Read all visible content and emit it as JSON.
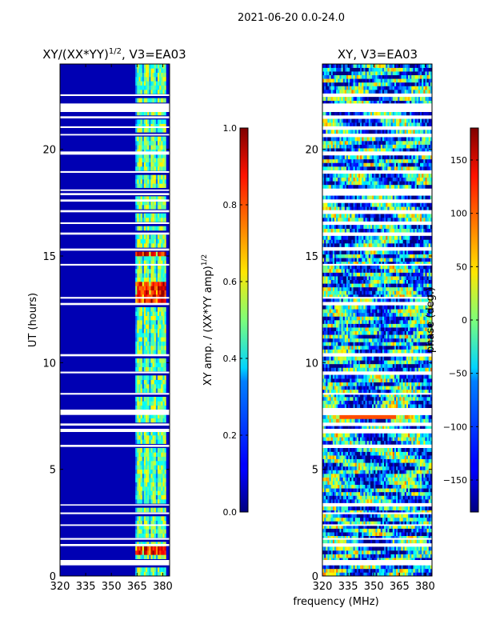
{
  "figure": {
    "suptitle": "2021-06-20 0.0-24.0",
    "common_xlabel": "frequency (MHz)"
  },
  "chart_data": [
    {
      "type": "heatmap",
      "title_main": "XY/(XX*YY)",
      "title_sup": "1/2",
      "title_tail": ", V3=EA03",
      "xlabel": "frequency (MHz)",
      "ylabel": "UT (hours)",
      "x_ticks": [
        320,
        335,
        350,
        365,
        380
      ],
      "x_tick_labels": [
        "320",
        "335",
        "350",
        "365",
        "380"
      ],
      "y_ticks": [
        0,
        5,
        10,
        15,
        20
      ],
      "y_tick_labels": [
        "0",
        "5",
        "10",
        "15",
        "20"
      ],
      "xlim": [
        320,
        384
      ],
      "ylim": [
        0,
        24
      ],
      "colormap": "jet",
      "colorbar": {
        "label_main": "XY amp. / (XX*YY amp)",
        "label_sup": "1/2",
        "range": [
          0.0,
          1.0
        ],
        "ticks": [
          0.0,
          0.2,
          0.4,
          0.6,
          0.8,
          1.0
        ],
        "tick_labels": [
          "0.0",
          "0.2",
          "0.4",
          "0.6",
          "0.8",
          "1.0"
        ]
      },
      "flagged_gaps_ut": [
        [
          0.5,
          0.75
        ],
        [
          1.4,
          1.5
        ],
        [
          1.7,
          1.78
        ],
        [
          2.35,
          2.42
        ],
        [
          2.9,
          2.98
        ],
        [
          3.3,
          3.36
        ],
        [
          6.05,
          6.15
        ],
        [
          6.75,
          6.9
        ],
        [
          7.05,
          7.15
        ],
        [
          7.55,
          7.8
        ],
        [
          8.5,
          8.58
        ],
        [
          9.5,
          9.58
        ],
        [
          10.3,
          10.4
        ],
        [
          12.7,
          12.8
        ],
        [
          13.0,
          13.08
        ],
        [
          14.55,
          14.63
        ],
        [
          15.25,
          15.35
        ],
        [
          16.0,
          16.1
        ],
        [
          16.5,
          16.58
        ],
        [
          17.05,
          17.15
        ],
        [
          17.55,
          17.65
        ],
        [
          17.85,
          17.95
        ],
        [
          18.05,
          18.12
        ],
        [
          18.9,
          18.98
        ],
        [
          19.75,
          19.9
        ],
        [
          20.65,
          20.72
        ],
        [
          21.0,
          21.08
        ],
        [
          21.45,
          21.55
        ],
        [
          21.75,
          22.15
        ],
        [
          22.5,
          22.58
        ]
      ],
      "active_band_mhz": [
        364,
        383
      ],
      "active_columns_mhz": [
        366.5,
        370.5,
        374.5,
        378.5,
        381.5
      ],
      "peak_amp_intervals_ut": [
        [
          12.6,
          13.8
        ],
        [
          1.0,
          1.4
        ],
        [
          15.0,
          15.3
        ]
      ]
    },
    {
      "type": "heatmap",
      "title": "XY, V3=EA03",
      "xlabel": "frequency (MHz)",
      "ylabel": "",
      "x_ticks": [
        320,
        335,
        350,
        365,
        380
      ],
      "x_tick_labels": [
        "320",
        "335",
        "350",
        "365",
        "380"
      ],
      "y_ticks": [
        0,
        5,
        10,
        15,
        20
      ],
      "y_tick_labels": [
        "0",
        "5",
        "10",
        "15",
        "20"
      ],
      "xlim": [
        320,
        384
      ],
      "ylim": [
        0,
        24
      ],
      "colormap": "jet",
      "colorbar": {
        "label": "phase (deg.)",
        "range": [
          -180,
          180
        ],
        "ticks": [
          -150,
          -100,
          -50,
          0,
          50,
          100,
          150
        ],
        "tick_labels": [
          "−150",
          "−100",
          "−50",
          "0",
          "50",
          "100",
          "150"
        ]
      },
      "flagged_gaps_ut": [
        [
          0.5,
          0.75
        ],
        [
          1.4,
          1.5
        ],
        [
          1.7,
          1.78
        ],
        [
          2.35,
          2.42
        ],
        [
          2.9,
          2.98
        ],
        [
          3.3,
          3.36
        ],
        [
          6.05,
          6.15
        ],
        [
          6.75,
          6.9
        ],
        [
          7.05,
          7.15
        ],
        [
          7.55,
          7.8
        ],
        [
          8.5,
          8.58
        ],
        [
          9.5,
          9.58
        ],
        [
          10.3,
          10.4
        ],
        [
          12.7,
          12.8
        ],
        [
          13.0,
          13.08
        ],
        [
          14.55,
          14.63
        ],
        [
          15.25,
          15.35
        ],
        [
          16.0,
          16.1
        ],
        [
          16.5,
          16.58
        ],
        [
          17.05,
          17.15
        ],
        [
          17.55,
          17.65
        ],
        [
          17.85,
          17.95
        ],
        [
          18.05,
          18.12
        ],
        [
          18.9,
          18.98
        ],
        [
          19.75,
          19.9
        ],
        [
          20.65,
          20.72
        ],
        [
          21.0,
          21.08
        ],
        [
          21.45,
          21.55
        ],
        [
          21.75,
          22.15
        ],
        [
          22.5,
          22.58
        ]
      ],
      "orange_stripe_ut": [
        7.45,
        7.7
      ],
      "orange_stripe_mhz": [
        330,
        363
      ]
    }
  ]
}
